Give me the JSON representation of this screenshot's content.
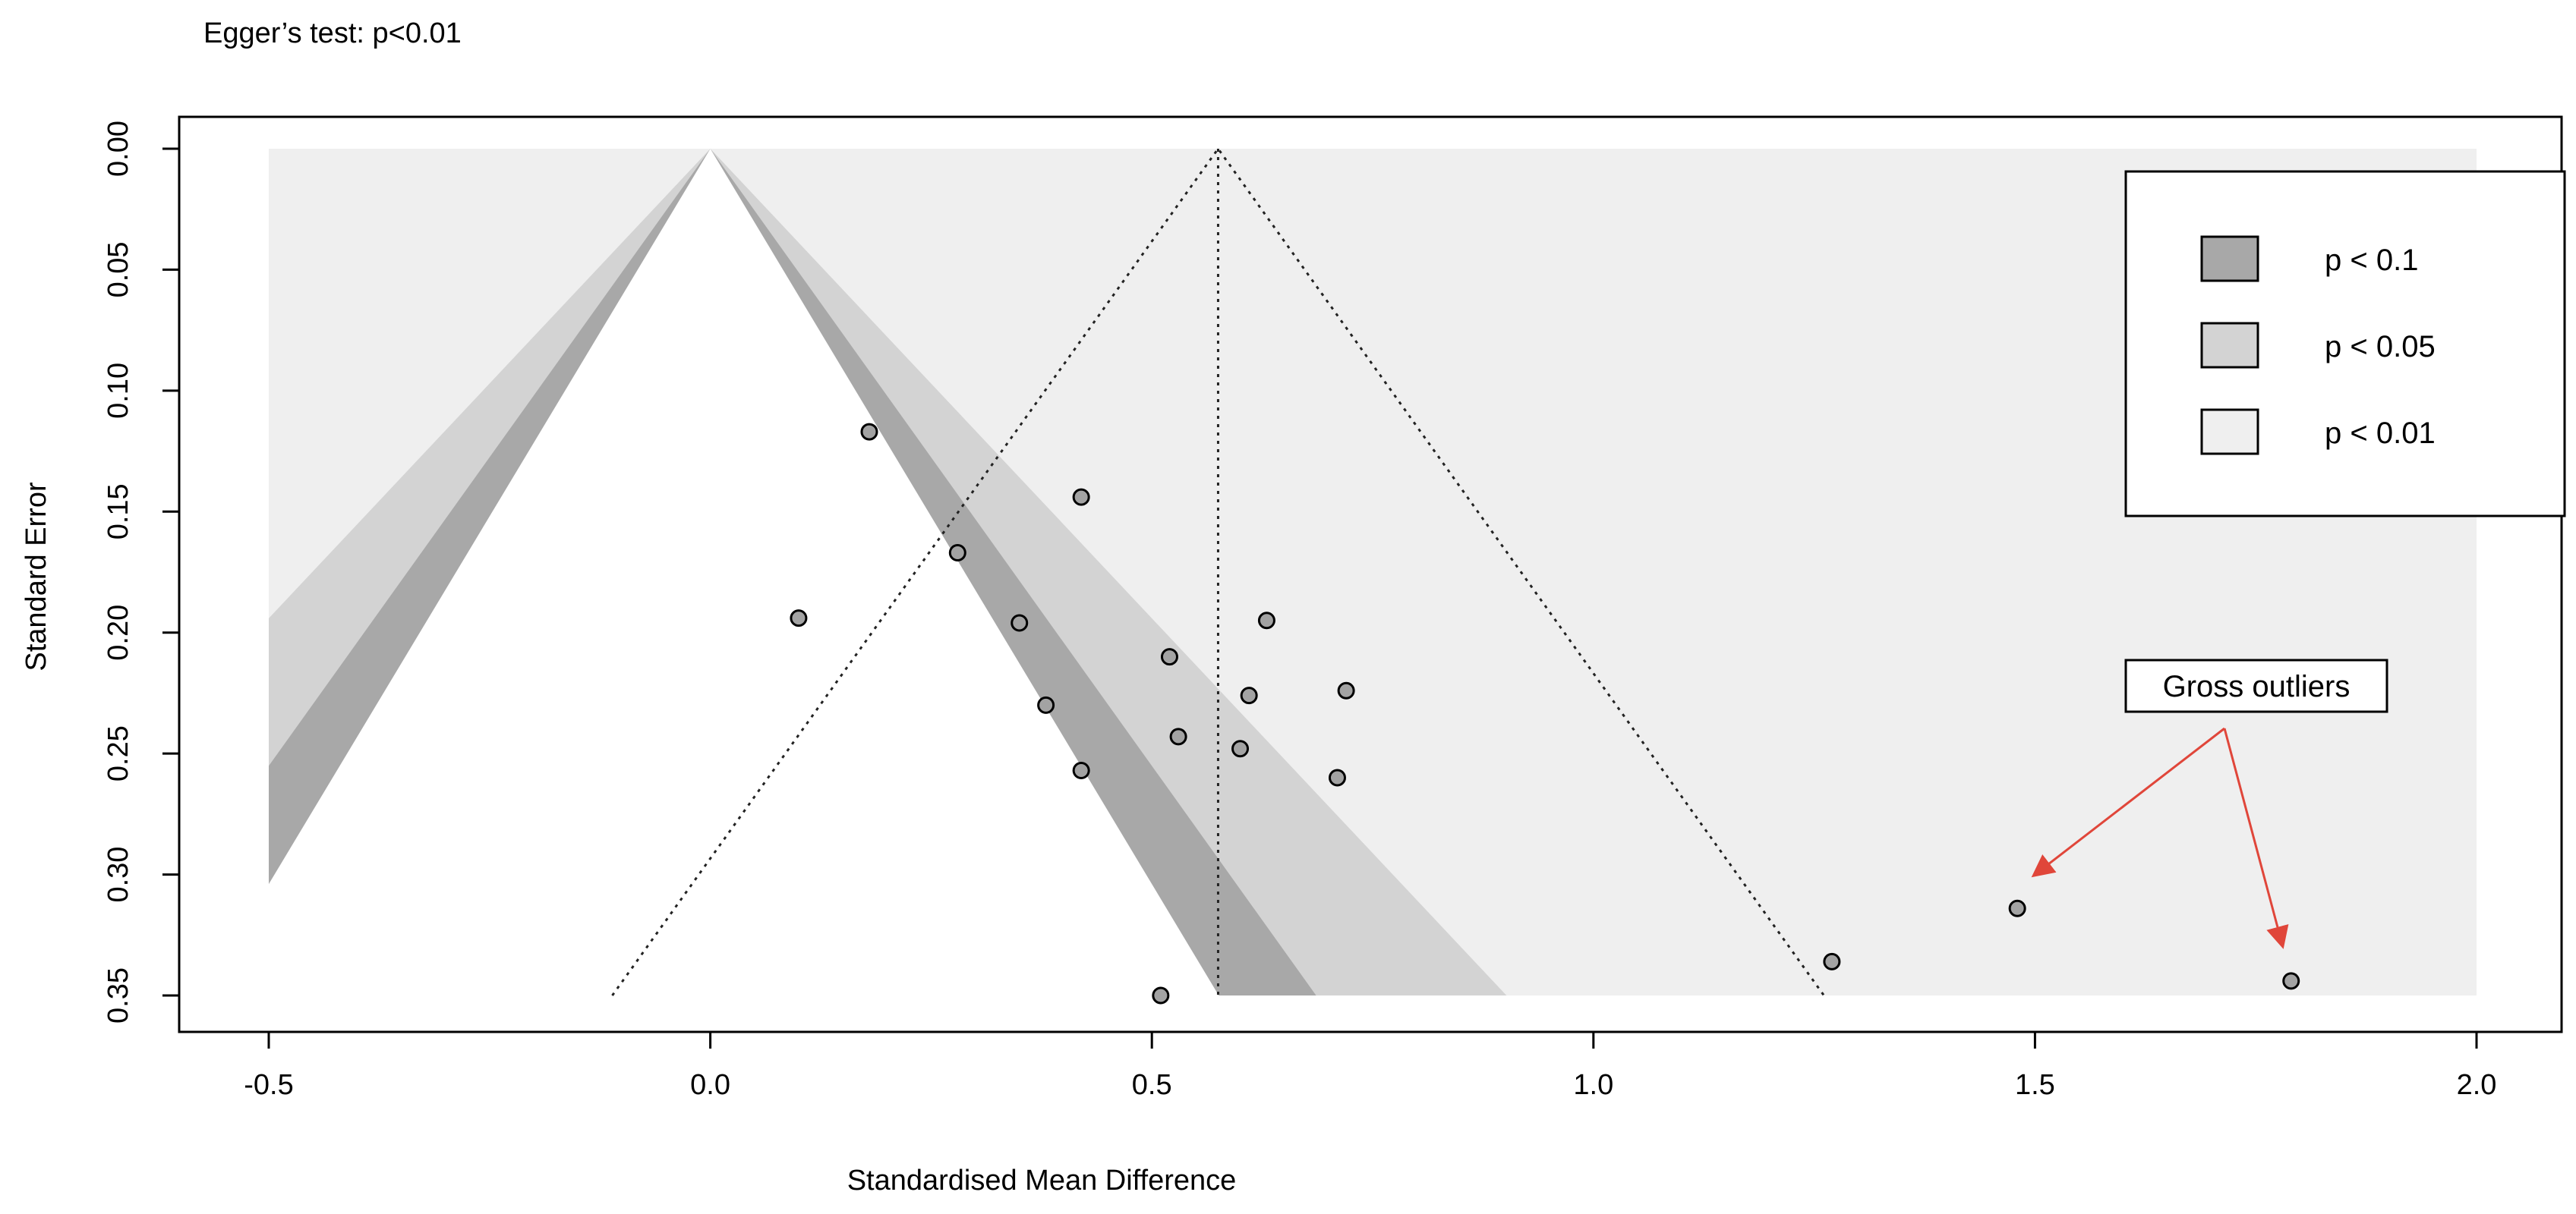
{
  "chart_data": {
    "type": "scatter",
    "subtitle": "Egger’s test: p<0.01",
    "xlabel": "Standardised Mean Difference",
    "ylabel": "Standard Error",
    "xlim": [
      -0.5,
      2.0
    ],
    "ylim": [
      0.35,
      0.0
    ],
    "y_axis_reversed": true,
    "x_ticks": [
      -0.5,
      0.0,
      0.5,
      1.0,
      1.5,
      2.0
    ],
    "x_tick_labels": [
      "-0.5",
      "0.0",
      "0.5",
      "1.0",
      "1.5",
      "2.0"
    ],
    "y_ticks": [
      0.0,
      0.05,
      0.1,
      0.15,
      0.2,
      0.25,
      0.3,
      0.35
    ],
    "y_tick_labels": [
      "0.00",
      "0.05",
      "0.10",
      "0.15",
      "0.20",
      "0.25",
      "0.30",
      "0.35"
    ],
    "contour_center": 0.0,
    "pooled_estimate": 0.575,
    "contour_levels": [
      {
        "label": "p < 0.1",
        "z": 1.645,
        "color": "#a8a8a8"
      },
      {
        "label": "p < 0.05",
        "z": 1.96,
        "color": "#d3d3d3"
      },
      {
        "label": "p < 0.01",
        "z": 2.576,
        "color": "#efefef"
      }
    ],
    "points": [
      {
        "x": 0.18,
        "y": 0.117
      },
      {
        "x": 0.1,
        "y": 0.194
      },
      {
        "x": 0.28,
        "y": 0.167
      },
      {
        "x": 0.35,
        "y": 0.196
      },
      {
        "x": 0.38,
        "y": 0.23
      },
      {
        "x": 0.42,
        "y": 0.144
      },
      {
        "x": 0.42,
        "y": 0.257
      },
      {
        "x": 0.52,
        "y": 0.21
      },
      {
        "x": 0.53,
        "y": 0.243
      },
      {
        "x": 0.51,
        "y": 0.35
      },
      {
        "x": 0.6,
        "y": 0.248
      },
      {
        "x": 0.61,
        "y": 0.226
      },
      {
        "x": 0.63,
        "y": 0.195
      },
      {
        "x": 0.71,
        "y": 0.26
      },
      {
        "x": 0.72,
        "y": 0.224
      },
      {
        "x": 1.27,
        "y": 0.336
      },
      {
        "x": 1.48,
        "y": 0.314
      },
      {
        "x": 1.79,
        "y": 0.344
      }
    ],
    "legend": {
      "position": "top-right",
      "entries": [
        "p < 0.1",
        "p < 0.05",
        "p < 0.01"
      ]
    },
    "annotation": {
      "label": "Gross outliers",
      "arrow_color": "#e0463a",
      "targets": [
        {
          "x": 1.5,
          "y": 0.3
        },
        {
          "x": 1.78,
          "y": 0.329
        }
      ]
    }
  }
}
